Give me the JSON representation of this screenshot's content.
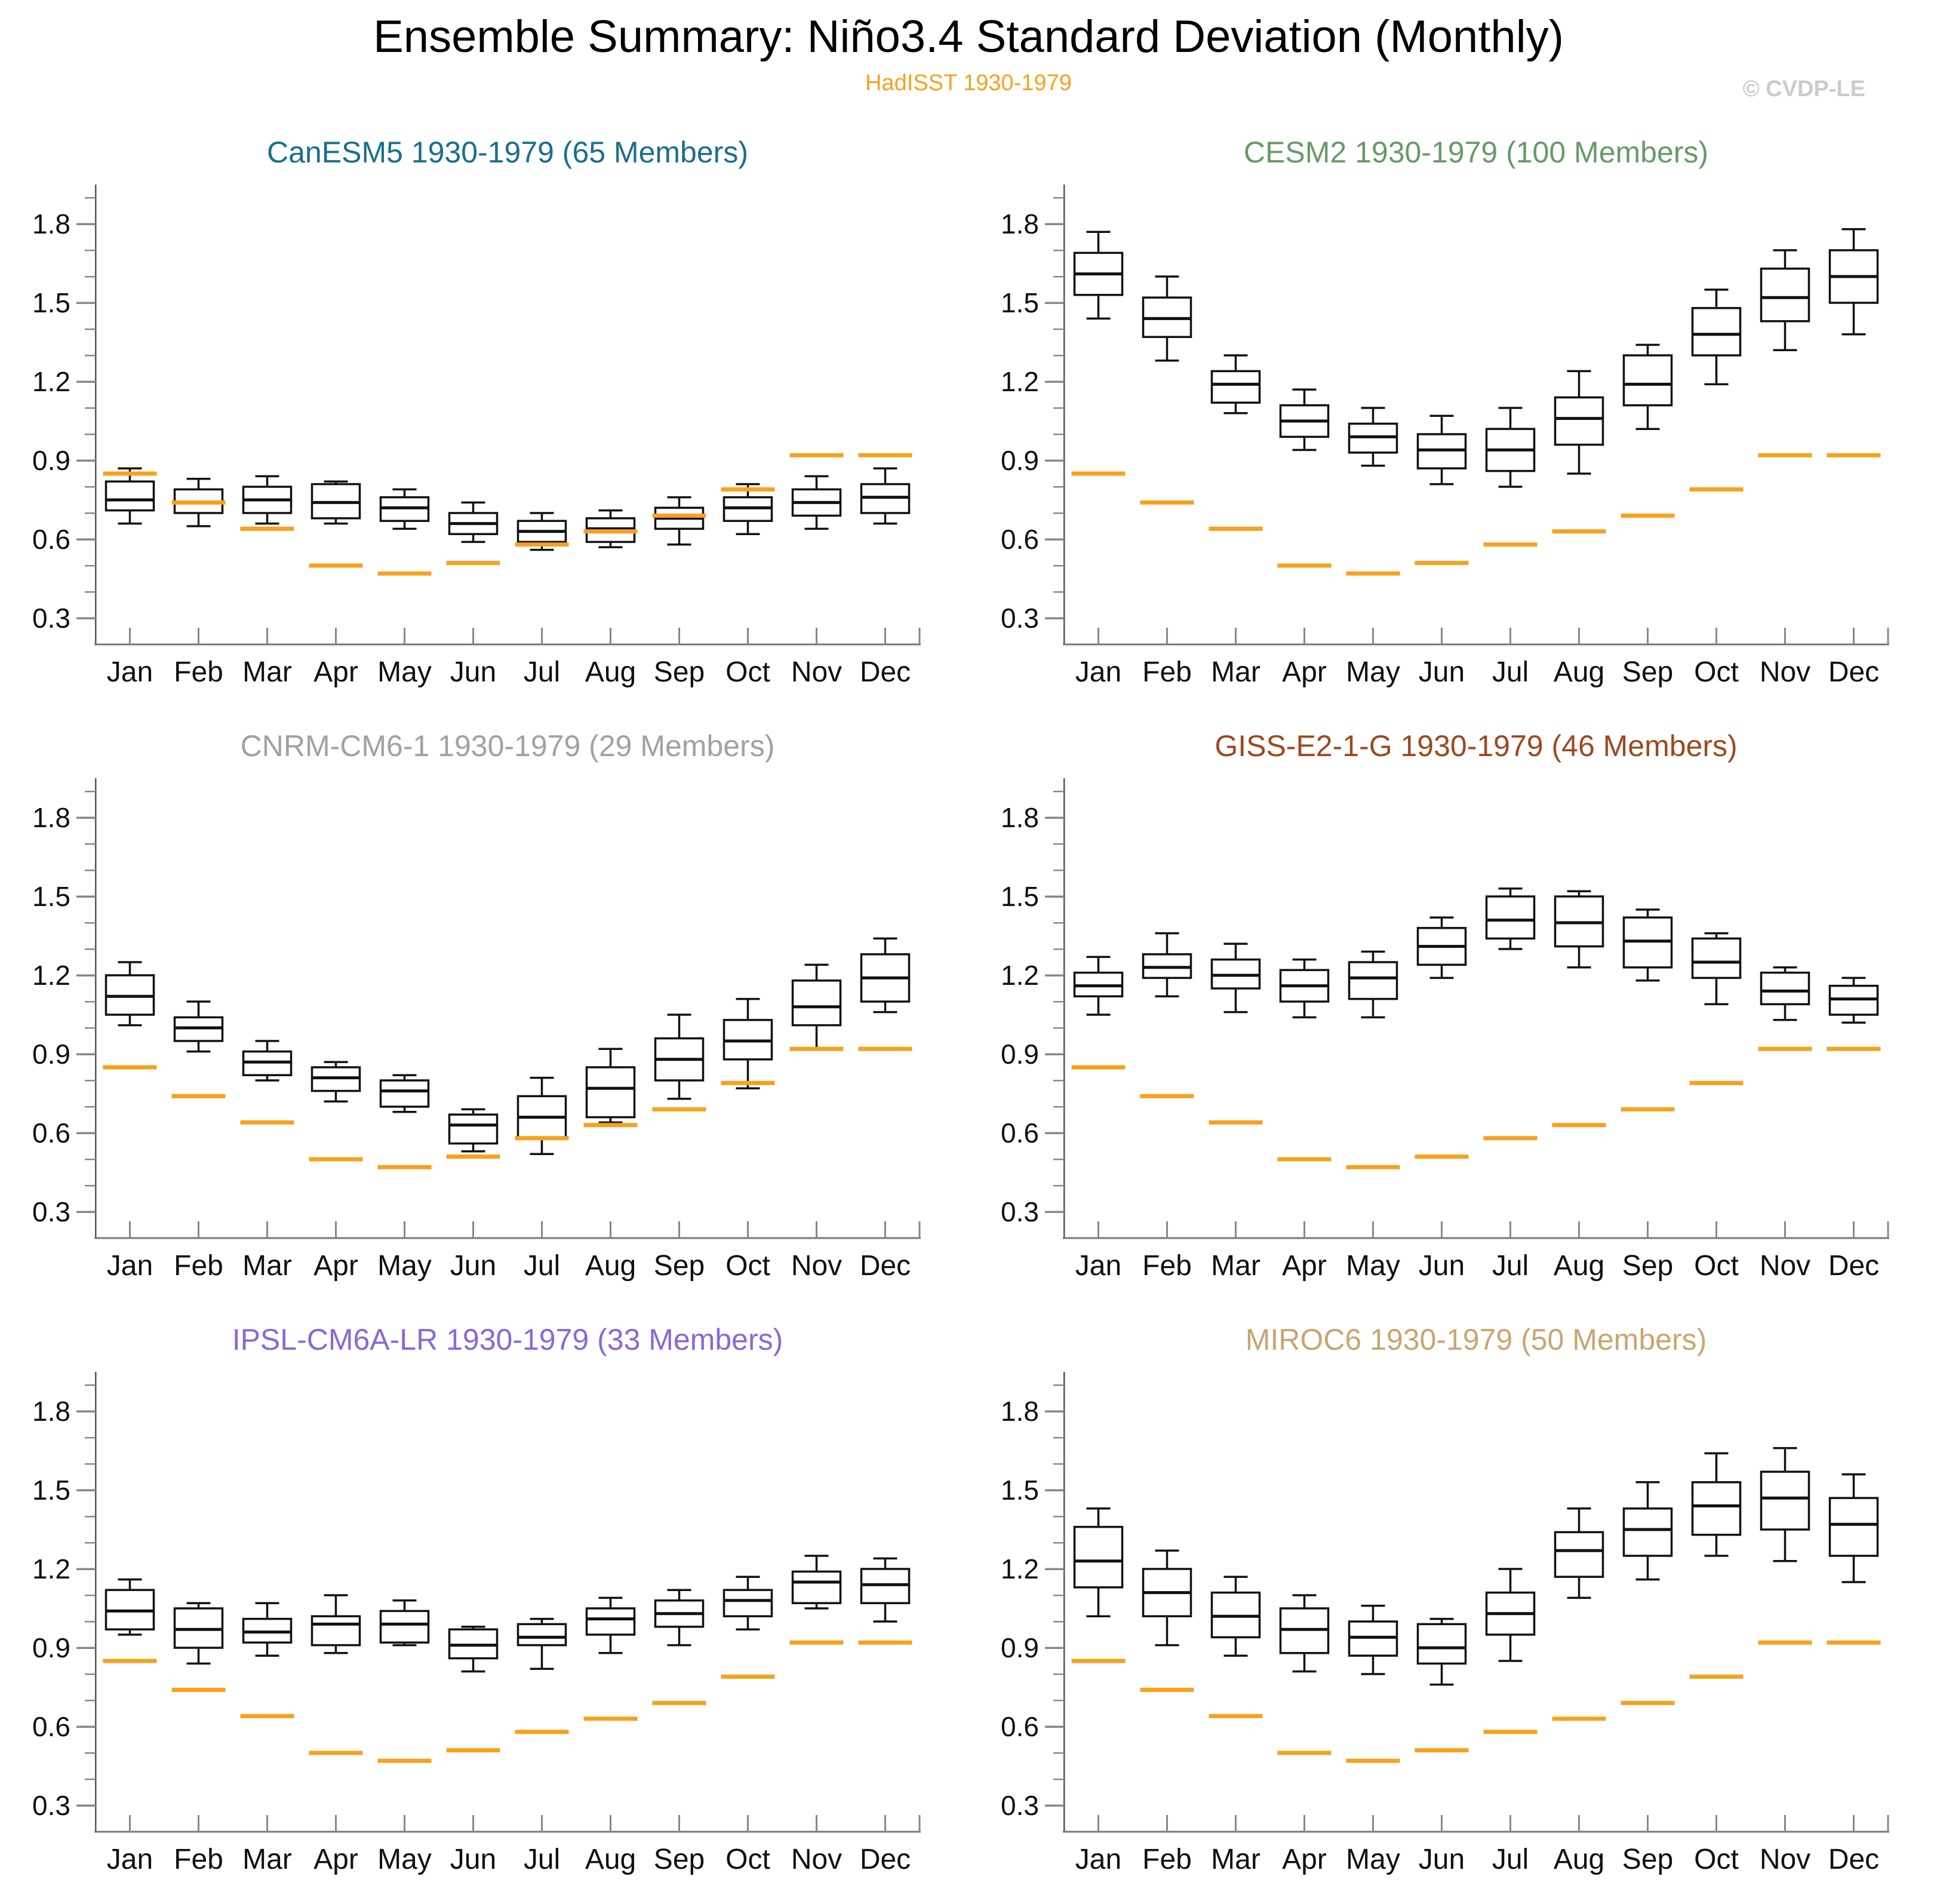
{
  "header": {
    "title": "Ensemble Summary: Niño3.4 Standard Deviation (Monthly)",
    "subtitle": "HadISST 1930-1979",
    "watermark": "© CVDP-LE"
  },
  "chart_data": {
    "type": "box",
    "months": [
      "Jan",
      "Feb",
      "Mar",
      "Apr",
      "May",
      "Jun",
      "Jul",
      "Aug",
      "Sep",
      "Oct",
      "Nov",
      "Dec"
    ],
    "ylim": [
      0.2,
      1.95
    ],
    "y_ticks": [
      0.3,
      0.6,
      0.9,
      1.2,
      1.5,
      1.8
    ],
    "y_tick_labels": [
      "0.3",
      "0.6",
      "0.9",
      "1.2",
      "1.5",
      "1.8"
    ],
    "minor_tick_step": 0.1,
    "grid": "off",
    "box_stat_order": [
      "whisker_low",
      "q1",
      "median",
      "q3",
      "whisker_high"
    ],
    "observed": {
      "label": "HadISST 1930-1979",
      "color": "#F8A11E",
      "values": [
        0.85,
        0.74,
        0.64,
        0.5,
        0.47,
        0.51,
        0.58,
        0.63,
        0.69,
        0.79,
        0.92,
        0.92
      ]
    },
    "panels": [
      {
        "title": "CanESM5 1930-1979 (65 Members)",
        "color": "#1A6E8E",
        "boxes": [
          [
            0.66,
            0.71,
            0.75,
            0.82,
            0.87
          ],
          [
            0.65,
            0.7,
            0.74,
            0.79,
            0.83
          ],
          [
            0.66,
            0.7,
            0.75,
            0.8,
            0.84
          ],
          [
            0.66,
            0.68,
            0.74,
            0.81,
            0.82
          ],
          [
            0.64,
            0.67,
            0.72,
            0.76,
            0.79
          ],
          [
            0.59,
            0.62,
            0.66,
            0.7,
            0.74
          ],
          [
            0.56,
            0.59,
            0.63,
            0.67,
            0.7
          ],
          [
            0.57,
            0.59,
            0.64,
            0.68,
            0.71
          ],
          [
            0.58,
            0.64,
            0.68,
            0.72,
            0.76
          ],
          [
            0.62,
            0.67,
            0.72,
            0.76,
            0.81
          ],
          [
            0.64,
            0.69,
            0.74,
            0.79,
            0.84
          ],
          [
            0.66,
            0.7,
            0.76,
            0.81,
            0.87
          ]
        ]
      },
      {
        "title": "CESM2 1930-1979 (100 Members)",
        "color": "#679A68",
        "boxes": [
          [
            1.44,
            1.53,
            1.61,
            1.69,
            1.77
          ],
          [
            1.28,
            1.37,
            1.44,
            1.52,
            1.6
          ],
          [
            1.08,
            1.12,
            1.19,
            1.24,
            1.3
          ],
          [
            0.94,
            0.99,
            1.05,
            1.11,
            1.17
          ],
          [
            0.88,
            0.93,
            0.99,
            1.04,
            1.1
          ],
          [
            0.81,
            0.87,
            0.94,
            1.0,
            1.07
          ],
          [
            0.8,
            0.86,
            0.94,
            1.02,
            1.1
          ],
          [
            0.85,
            0.96,
            1.06,
            1.14,
            1.24
          ],
          [
            1.02,
            1.11,
            1.19,
            1.3,
            1.34
          ],
          [
            1.19,
            1.3,
            1.38,
            1.48,
            1.55
          ],
          [
            1.32,
            1.43,
            1.52,
            1.63,
            1.7
          ],
          [
            1.38,
            1.5,
            1.6,
            1.7,
            1.78
          ]
        ]
      },
      {
        "title": "CNRM-CM6-1 1930-1979 (29 Members)",
        "color": "#A5A0A0",
        "boxes": [
          [
            1.01,
            1.05,
            1.12,
            1.2,
            1.25
          ],
          [
            0.91,
            0.95,
            1.0,
            1.04,
            1.1
          ],
          [
            0.8,
            0.82,
            0.87,
            0.91,
            0.95
          ],
          [
            0.72,
            0.76,
            0.81,
            0.85,
            0.87
          ],
          [
            0.68,
            0.7,
            0.76,
            0.8,
            0.82
          ],
          [
            0.53,
            0.56,
            0.63,
            0.67,
            0.69
          ],
          [
            0.52,
            0.58,
            0.66,
            0.74,
            0.81
          ],
          [
            0.64,
            0.66,
            0.77,
            0.85,
            0.92
          ],
          [
            0.73,
            0.8,
            0.88,
            0.96,
            1.05
          ],
          [
            0.77,
            0.88,
            0.95,
            1.03,
            1.11
          ],
          [
            0.92,
            1.01,
            1.08,
            1.18,
            1.24
          ],
          [
            1.06,
            1.1,
            1.19,
            1.28,
            1.34
          ]
        ]
      },
      {
        "title": "GISS-E2-1-G 1930-1979 (46 Members)",
        "color": "#9E481E",
        "boxes": [
          [
            1.05,
            1.12,
            1.16,
            1.21,
            1.27
          ],
          [
            1.12,
            1.19,
            1.23,
            1.28,
            1.36
          ],
          [
            1.06,
            1.15,
            1.2,
            1.26,
            1.32
          ],
          [
            1.04,
            1.1,
            1.16,
            1.22,
            1.26
          ],
          [
            1.04,
            1.11,
            1.19,
            1.25,
            1.29
          ],
          [
            1.19,
            1.24,
            1.31,
            1.38,
            1.42
          ],
          [
            1.3,
            1.34,
            1.41,
            1.5,
            1.53
          ],
          [
            1.23,
            1.31,
            1.4,
            1.5,
            1.52
          ],
          [
            1.18,
            1.23,
            1.33,
            1.42,
            1.45
          ],
          [
            1.09,
            1.19,
            1.25,
            1.34,
            1.36
          ],
          [
            1.03,
            1.09,
            1.14,
            1.21,
            1.23
          ],
          [
            1.02,
            1.05,
            1.11,
            1.16,
            1.19
          ]
        ]
      },
      {
        "title": "IPSL-CM6A-LR 1930-1979 (33 Members)",
        "color": "#8A67D8",
        "boxes": [
          [
            0.95,
            0.97,
            1.04,
            1.12,
            1.16
          ],
          [
            0.84,
            0.9,
            0.97,
            1.05,
            1.07
          ],
          [
            0.87,
            0.92,
            0.96,
            1.01,
            1.07
          ],
          [
            0.88,
            0.91,
            0.99,
            1.02,
            1.1
          ],
          [
            0.91,
            0.92,
            0.99,
            1.04,
            1.08
          ],
          [
            0.81,
            0.86,
            0.91,
            0.97,
            0.98
          ],
          [
            0.82,
            0.91,
            0.94,
            0.99,
            1.01
          ],
          [
            0.88,
            0.95,
            1.01,
            1.05,
            1.09
          ],
          [
            0.91,
            0.98,
            1.03,
            1.08,
            1.12
          ],
          [
            0.97,
            1.02,
            1.08,
            1.12,
            1.17
          ],
          [
            1.05,
            1.07,
            1.15,
            1.19,
            1.25
          ],
          [
            1.0,
            1.07,
            1.14,
            1.2,
            1.24
          ]
        ]
      },
      {
        "title": "MIROC6 1930-1979 (50 Members)",
        "color": "#C9A571",
        "boxes": [
          [
            1.02,
            1.13,
            1.23,
            1.36,
            1.43
          ],
          [
            0.91,
            1.02,
            1.11,
            1.2,
            1.27
          ],
          [
            0.87,
            0.94,
            1.02,
            1.11,
            1.17
          ],
          [
            0.81,
            0.88,
            0.97,
            1.05,
            1.1
          ],
          [
            0.8,
            0.87,
            0.94,
            1.0,
            1.06
          ],
          [
            0.76,
            0.84,
            0.9,
            0.99,
            1.01
          ],
          [
            0.85,
            0.95,
            1.03,
            1.11,
            1.2
          ],
          [
            1.09,
            1.17,
            1.27,
            1.34,
            1.43
          ],
          [
            1.16,
            1.25,
            1.35,
            1.43,
            1.53
          ],
          [
            1.25,
            1.33,
            1.44,
            1.53,
            1.64
          ],
          [
            1.23,
            1.35,
            1.47,
            1.57,
            1.66
          ],
          [
            1.15,
            1.25,
            1.37,
            1.47,
            1.56
          ]
        ]
      }
    ]
  }
}
